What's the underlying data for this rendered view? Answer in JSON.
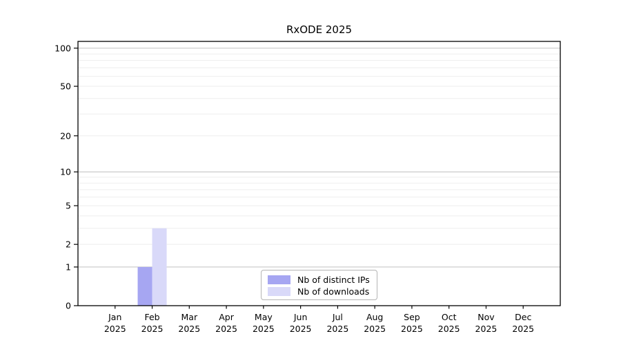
{
  "figure": {
    "title": "RxODE 2025"
  },
  "chart_data": {
    "type": "bar",
    "title": "RxODE 2025",
    "xlabel": "",
    "ylabel": "",
    "categories": [
      "Jan 2025",
      "Feb 2025",
      "Mar 2025",
      "Apr 2025",
      "May 2025",
      "Jun 2025",
      "Jul 2025",
      "Aug 2025",
      "Sep 2025",
      "Oct 2025",
      "Nov 2025",
      "Dec 2025"
    ],
    "series": [
      {
        "name": "Nb of distinct IPs",
        "color": "#a6a6f2",
        "values": [
          0,
          1,
          0,
          0,
          0,
          0,
          0,
          0,
          0,
          0,
          0,
          0
        ]
      },
      {
        "name": "Nb of downloads",
        "color": "#d9d9f9",
        "values": [
          0,
          3,
          0,
          0,
          0,
          0,
          0,
          0,
          0,
          0,
          0,
          0
        ]
      }
    ],
    "y_axis": {
      "scale": "log1p",
      "tick_values": [
        0,
        1,
        2,
        5,
        10,
        20,
        50,
        100
      ],
      "tick_labels": [
        "0",
        "1",
        "2",
        "5",
        "10",
        "20",
        "50",
        "100"
      ],
      "major_gridlines": [
        1,
        10,
        100
      ],
      "minor_gridlines": [
        2,
        3,
        4,
        5,
        6,
        7,
        8,
        9,
        20,
        30,
        40,
        50,
        60,
        70,
        80,
        90
      ],
      "ylim": [
        0,
        113
      ]
    },
    "grid": {
      "major_color": "#c8c8c8",
      "minor_color": "#eeeeee"
    },
    "legend": {
      "position": "bottom-center",
      "items": [
        "Nb of distinct IPs",
        "Nb of downloads"
      ]
    }
  }
}
